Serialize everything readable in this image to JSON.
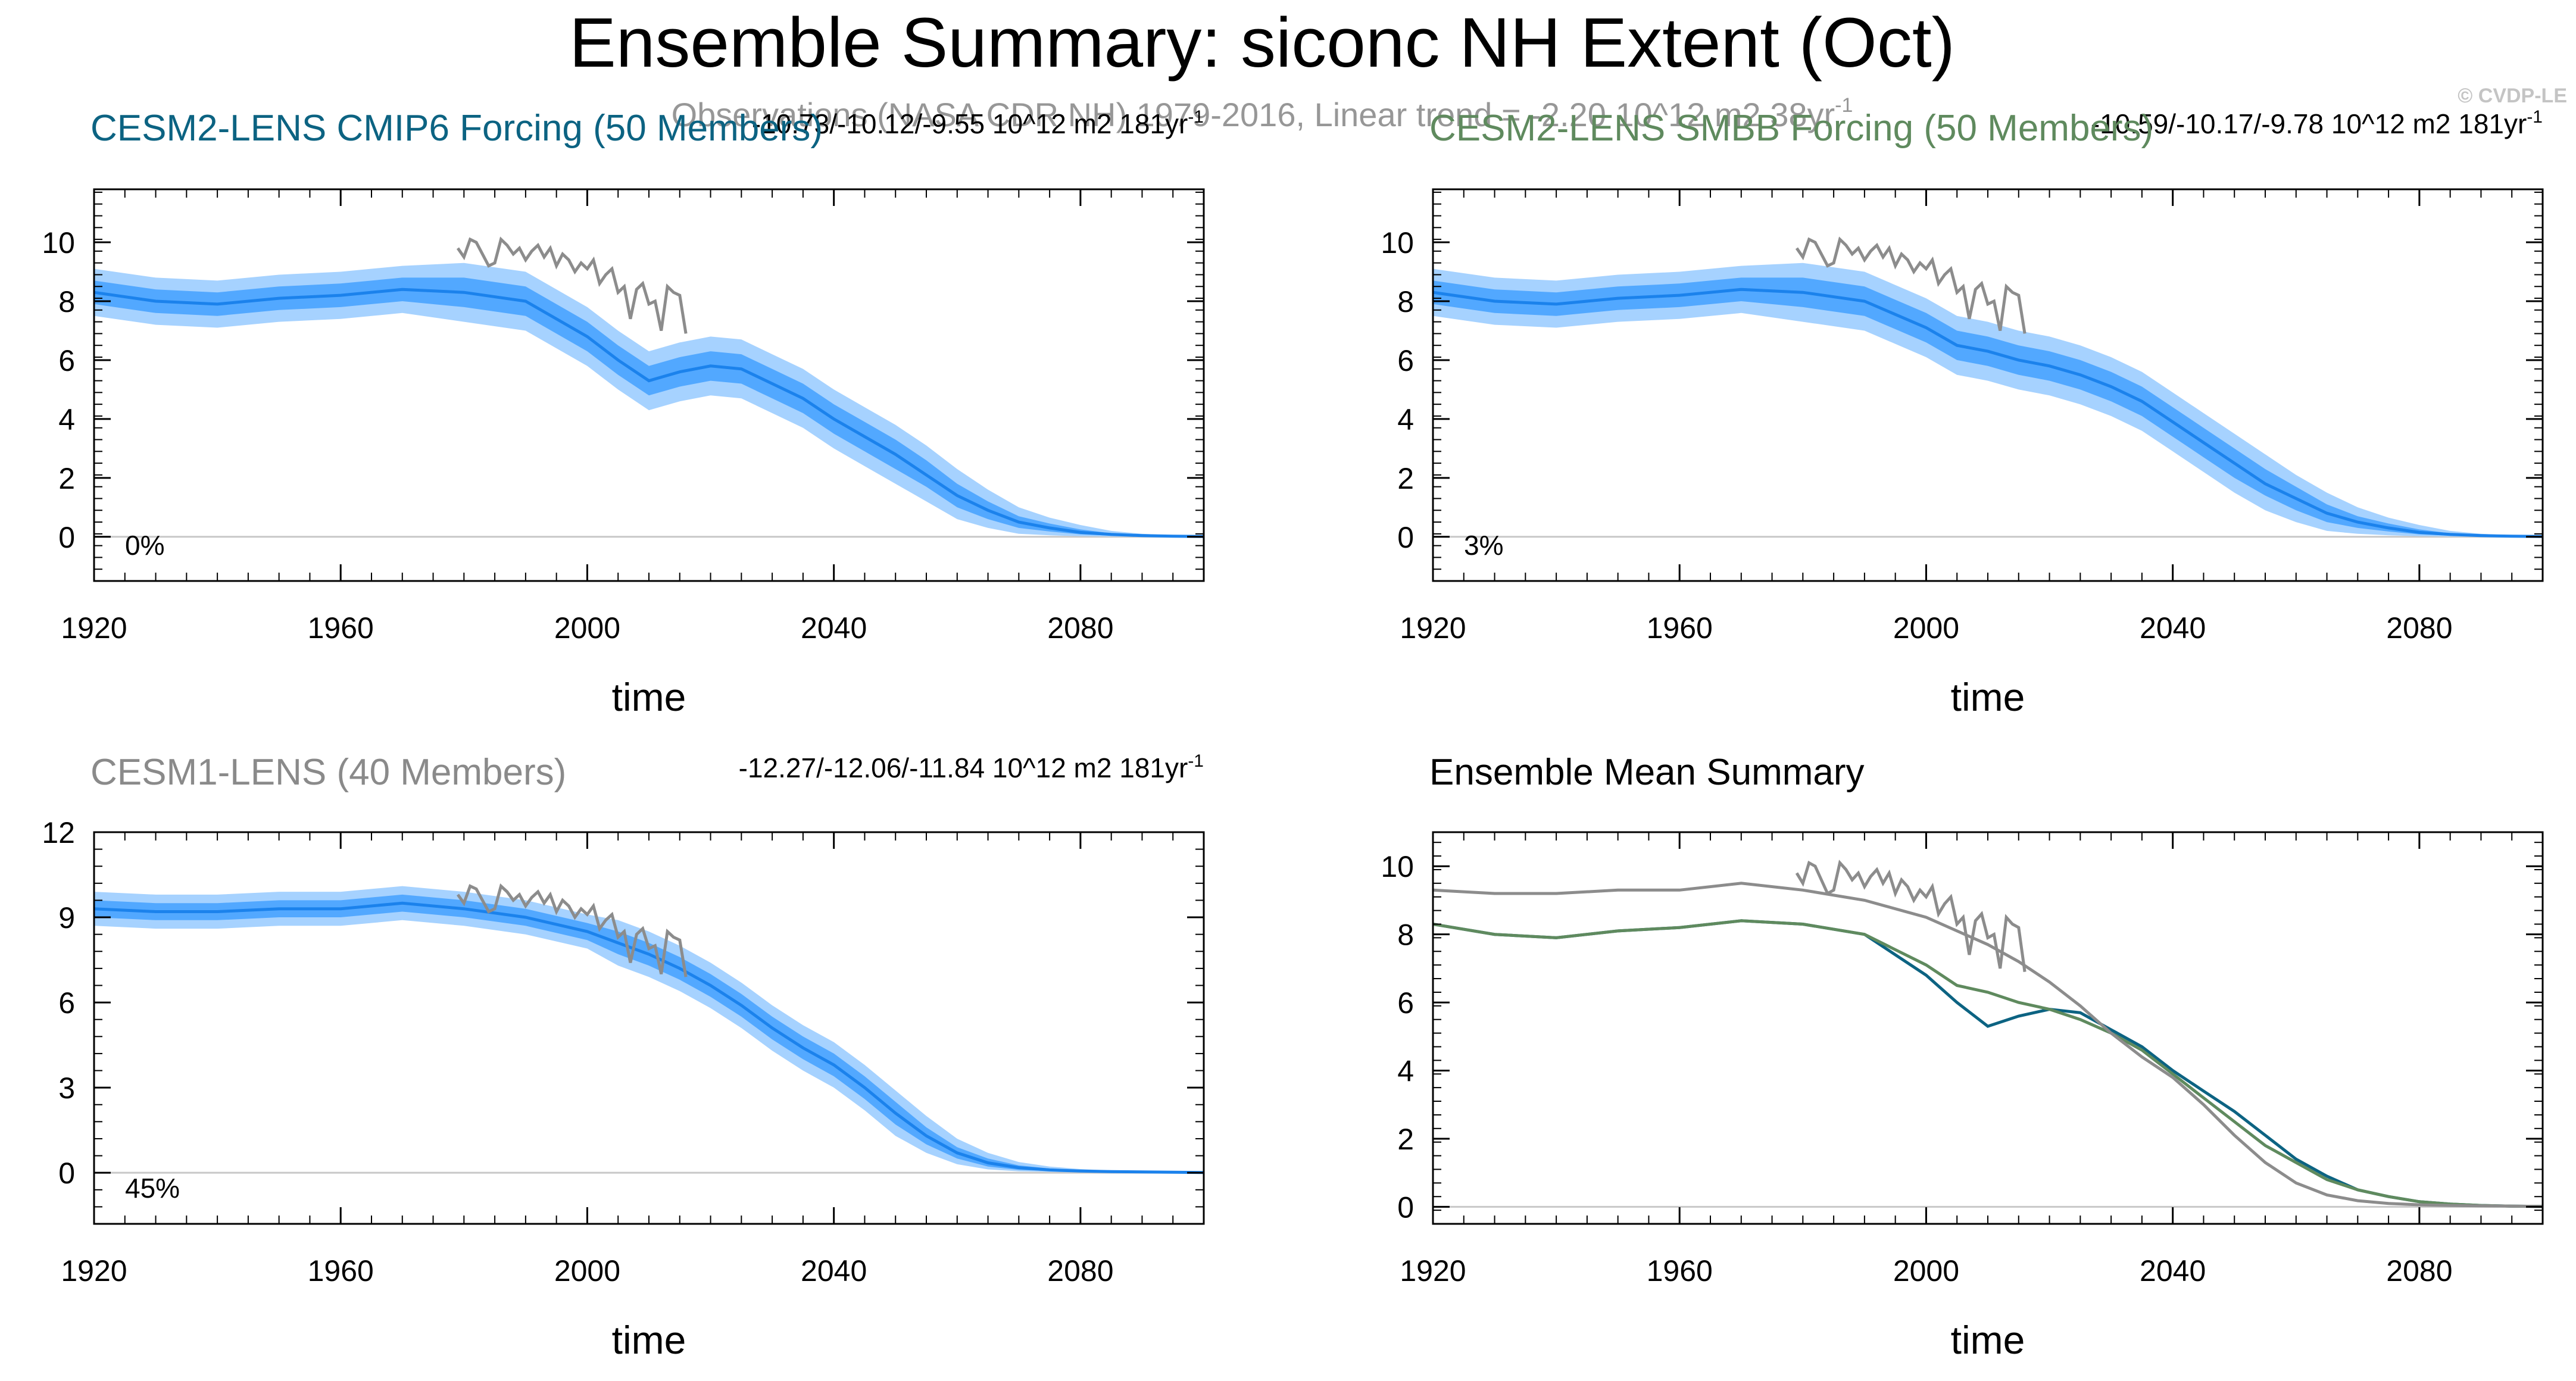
{
  "figure": {
    "title": "Ensemble Summary: siconc NH Extent (Oct)",
    "watermark": "© CVDP-LE",
    "observations_label": "Observations (NASA CDR NH) 1979-2016, Linear trend = -2.20 10^12 m2 38yr",
    "observations_label_superscript": "-1"
  },
  "colors": {
    "band_outer": "#a6d2ff",
    "band_inner": "#52a8ff",
    "ensemble_mean": "#1b82ec",
    "observations": "#8c8c8c",
    "cmip6_title": "#0c6382",
    "smbb_title": "#5f8a5e",
    "cesm1_title": "#8a8a8a",
    "zero_line": "#c8c8c8",
    "text": "#000000"
  },
  "chart_data": [
    {
      "id": "cmip6",
      "type": "area",
      "title": "CESM2-LENS CMIP6 Forcing (50 Members)",
      "trend_label": "-10.73/-10.12/-9.55 10^12 m2 181yr",
      "trend_superscript": "-1",
      "percent_label": "0%",
      "xlabel": "time",
      "ylabel": "",
      "xlim": [
        1920,
        2100
      ],
      "ylim": [
        -1.5,
        11.8
      ],
      "yticks": [
        0,
        2,
        4,
        6,
        8,
        10
      ],
      "xticks": [
        1920,
        1960,
        2000,
        2040,
        2080
      ],
      "x": [
        1920,
        1930,
        1940,
        1950,
        1960,
        1970,
        1980,
        1990,
        2000,
        2005,
        2010,
        2015,
        2020,
        2025,
        2030,
        2035,
        2040,
        2045,
        2050,
        2055,
        2060,
        2065,
        2070,
        2075,
        2080,
        2085,
        2090,
        2095,
        2100
      ],
      "mean": [
        8.3,
        8.0,
        7.9,
        8.1,
        8.2,
        8.4,
        8.3,
        8.0,
        6.8,
        6.0,
        5.3,
        5.6,
        5.8,
        5.7,
        5.2,
        4.7,
        4.0,
        3.4,
        2.8,
        2.1,
        1.4,
        0.9,
        0.5,
        0.3,
        0.15,
        0.08,
        0.04,
        0.02,
        0.01
      ],
      "inner_low": [
        7.9,
        7.6,
        7.5,
        7.7,
        7.8,
        8.0,
        7.8,
        7.5,
        6.3,
        5.5,
        4.8,
        5.1,
        5.3,
        5.2,
        4.7,
        4.2,
        3.5,
        2.9,
        2.3,
        1.7,
        1.0,
        0.6,
        0.3,
        0.18,
        0.08,
        0.04,
        0.02,
        0.01,
        0.0
      ],
      "inner_high": [
        8.7,
        8.4,
        8.3,
        8.5,
        8.6,
        8.8,
        8.8,
        8.5,
        7.3,
        6.5,
        5.8,
        6.1,
        6.3,
        6.2,
        5.7,
        5.2,
        4.5,
        3.9,
        3.3,
        2.6,
        1.8,
        1.2,
        0.7,
        0.45,
        0.25,
        0.12,
        0.06,
        0.03,
        0.02
      ],
      "outer_low": [
        7.5,
        7.2,
        7.1,
        7.3,
        7.4,
        7.6,
        7.3,
        7.0,
        5.8,
        5.0,
        4.3,
        4.6,
        4.8,
        4.7,
        4.2,
        3.7,
        3.0,
        2.4,
        1.8,
        1.2,
        0.6,
        0.3,
        0.1,
        0.05,
        0.02,
        0.01,
        0.0,
        0.0,
        0.0
      ],
      "outer_high": [
        9.1,
        8.8,
        8.7,
        8.9,
        9.0,
        9.2,
        9.3,
        9.0,
        7.8,
        7.0,
        6.3,
        6.6,
        6.8,
        6.7,
        6.2,
        5.7,
        5.0,
        4.4,
        3.8,
        3.1,
        2.3,
        1.6,
        1.0,
        0.65,
        0.4,
        0.2,
        0.1,
        0.05,
        0.03
      ],
      "obs_x": [
        1979,
        1980,
        1981,
        1982,
        1983,
        1984,
        1985,
        1986,
        1987,
        1988,
        1989,
        1990,
        1991,
        1992,
        1993,
        1994,
        1995,
        1996,
        1997,
        1998,
        1999,
        2000,
        2001,
        2002,
        2003,
        2004,
        2005,
        2006,
        2007,
        2008,
        2009,
        2010,
        2011,
        2012,
        2013,
        2014,
        2015,
        2016
      ],
      "obs_y": [
        9.8,
        9.5,
        10.1,
        10.0,
        9.6,
        9.2,
        9.3,
        10.1,
        9.9,
        9.6,
        9.8,
        9.4,
        9.7,
        9.9,
        9.5,
        9.8,
        9.2,
        9.6,
        9.4,
        9.0,
        9.3,
        9.1,
        9.4,
        8.6,
        8.9,
        9.1,
        8.3,
        8.5,
        7.4,
        8.4,
        8.6,
        7.9,
        8.0,
        7.0,
        8.5,
        8.3,
        8.2,
        6.9
      ]
    },
    {
      "id": "smbb",
      "type": "area",
      "title": "CESM2-LENS SMBB Forcing (50 Members)",
      "trend_label": "-10.59/-10.17/-9.78 10^12 m2 181yr",
      "trend_superscript": "-1",
      "percent_label": "3%",
      "xlabel": "time",
      "ylabel": "",
      "xlim": [
        1920,
        2100
      ],
      "ylim": [
        -1.5,
        11.8
      ],
      "yticks": [
        0,
        2,
        4,
        6,
        8,
        10
      ],
      "xticks": [
        1920,
        1960,
        2000,
        2040,
        2080
      ],
      "x": [
        1920,
        1930,
        1940,
        1950,
        1960,
        1970,
        1980,
        1990,
        2000,
        2005,
        2010,
        2015,
        2020,
        2025,
        2030,
        2035,
        2040,
        2045,
        2050,
        2055,
        2060,
        2065,
        2070,
        2075,
        2080,
        2085,
        2090,
        2095,
        2100
      ],
      "mean": [
        8.3,
        8.0,
        7.9,
        8.1,
        8.2,
        8.4,
        8.3,
        8.0,
        7.1,
        6.5,
        6.3,
        6.0,
        5.8,
        5.5,
        5.1,
        4.6,
        3.9,
        3.2,
        2.5,
        1.8,
        1.3,
        0.8,
        0.5,
        0.3,
        0.15,
        0.08,
        0.04,
        0.02,
        0.01
      ],
      "inner_low": [
        7.9,
        7.6,
        7.5,
        7.7,
        7.8,
        8.0,
        7.8,
        7.5,
        6.6,
        6.0,
        5.8,
        5.5,
        5.3,
        5.0,
        4.6,
        4.1,
        3.4,
        2.7,
        2.0,
        1.4,
        0.9,
        0.5,
        0.3,
        0.18,
        0.08,
        0.04,
        0.02,
        0.01,
        0.0
      ],
      "inner_high": [
        8.7,
        8.4,
        8.3,
        8.5,
        8.6,
        8.8,
        8.8,
        8.5,
        7.6,
        7.0,
        6.8,
        6.5,
        6.3,
        6.0,
        5.6,
        5.1,
        4.4,
        3.7,
        3.0,
        2.3,
        1.7,
        1.1,
        0.7,
        0.45,
        0.25,
        0.12,
        0.06,
        0.03,
        0.02
      ],
      "outer_low": [
        7.5,
        7.2,
        7.1,
        7.3,
        7.4,
        7.6,
        7.3,
        7.0,
        6.1,
        5.5,
        5.3,
        5.0,
        4.8,
        4.5,
        4.1,
        3.6,
        2.9,
        2.2,
        1.5,
        0.9,
        0.5,
        0.2,
        0.1,
        0.05,
        0.02,
        0.01,
        0.0,
        0.0,
        0.0
      ],
      "outer_high": [
        9.1,
        8.8,
        8.7,
        8.9,
        9.0,
        9.2,
        9.3,
        9.0,
        8.1,
        7.5,
        7.3,
        7.0,
        6.8,
        6.5,
        6.1,
        5.6,
        4.9,
        4.2,
        3.5,
        2.8,
        2.1,
        1.5,
        1.0,
        0.65,
        0.4,
        0.2,
        0.1,
        0.05,
        0.03
      ],
      "obs_x": [
        1979,
        1980,
        1981,
        1982,
        1983,
        1984,
        1985,
        1986,
        1987,
        1988,
        1989,
        1990,
        1991,
        1992,
        1993,
        1994,
        1995,
        1996,
        1997,
        1998,
        1999,
        2000,
        2001,
        2002,
        2003,
        2004,
        2005,
        2006,
        2007,
        2008,
        2009,
        2010,
        2011,
        2012,
        2013,
        2014,
        2015,
        2016
      ],
      "obs_y": [
        9.8,
        9.5,
        10.1,
        10.0,
        9.6,
        9.2,
        9.3,
        10.1,
        9.9,
        9.6,
        9.8,
        9.4,
        9.7,
        9.9,
        9.5,
        9.8,
        9.2,
        9.6,
        9.4,
        9.0,
        9.3,
        9.1,
        9.4,
        8.6,
        8.9,
        9.1,
        8.3,
        8.5,
        7.4,
        8.4,
        8.6,
        7.9,
        8.0,
        7.0,
        8.5,
        8.3,
        8.2,
        6.9
      ]
    },
    {
      "id": "cesm1",
      "type": "area",
      "title": "CESM1-LENS (40 Members)",
      "trend_label": "-12.27/-12.06/-11.84 10^12 m2 181yr",
      "trend_superscript": "-1",
      "percent_label": "45%",
      "xlabel": "time",
      "ylabel": "",
      "xlim": [
        1920,
        2100
      ],
      "ylim": [
        -1.8,
        12
      ],
      "yticks": [
        0,
        3,
        6,
        9,
        12
      ],
      "xticks": [
        1920,
        1960,
        2000,
        2040,
        2080
      ],
      "x": [
        1920,
        1930,
        1940,
        1950,
        1960,
        1970,
        1980,
        1990,
        2000,
        2005,
        2010,
        2015,
        2020,
        2025,
        2030,
        2035,
        2040,
        2045,
        2050,
        2055,
        2060,
        2065,
        2070,
        2075,
        2080,
        2085,
        2090,
        2095,
        2100
      ],
      "mean": [
        9.3,
        9.2,
        9.2,
        9.3,
        9.3,
        9.5,
        9.3,
        9.0,
        8.5,
        8.1,
        7.7,
        7.2,
        6.6,
        5.9,
        5.1,
        4.4,
        3.8,
        3.0,
        2.1,
        1.3,
        0.7,
        0.35,
        0.18,
        0.1,
        0.06,
        0.04,
        0.03,
        0.02,
        0.01
      ],
      "inner_low": [
        9.0,
        8.9,
        8.9,
        9.0,
        9.0,
        9.2,
        9.0,
        8.7,
        8.2,
        7.7,
        7.3,
        6.8,
        6.2,
        5.5,
        4.7,
        4.0,
        3.4,
        2.6,
        1.7,
        1.0,
        0.5,
        0.22,
        0.1,
        0.06,
        0.03,
        0.02,
        0.01,
        0.01,
        0.0
      ],
      "inner_high": [
        9.6,
        9.5,
        9.5,
        9.6,
        9.6,
        9.8,
        9.6,
        9.3,
        8.8,
        8.5,
        8.1,
        7.6,
        7.0,
        6.3,
        5.5,
        4.8,
        4.2,
        3.4,
        2.5,
        1.6,
        0.9,
        0.5,
        0.26,
        0.15,
        0.09,
        0.06,
        0.04,
        0.03,
        0.02
      ],
      "outer_low": [
        8.7,
        8.6,
        8.6,
        8.7,
        8.7,
        8.9,
        8.7,
        8.4,
        7.9,
        7.3,
        6.9,
        6.4,
        5.8,
        5.1,
        4.3,
        3.6,
        3.0,
        2.2,
        1.3,
        0.7,
        0.3,
        0.12,
        0.05,
        0.03,
        0.01,
        0.01,
        0.0,
        0.0,
        0.0
      ],
      "outer_high": [
        9.9,
        9.8,
        9.8,
        9.9,
        9.9,
        10.1,
        9.9,
        9.6,
        9.1,
        8.9,
        8.5,
        8.0,
        7.4,
        6.7,
        5.9,
        5.2,
        4.6,
        3.8,
        2.9,
        2.0,
        1.2,
        0.7,
        0.38,
        0.22,
        0.13,
        0.08,
        0.06,
        0.04,
        0.03
      ],
      "obs_x": [
        1979,
        1980,
        1981,
        1982,
        1983,
        1984,
        1985,
        1986,
        1987,
        1988,
        1989,
        1990,
        1991,
        1992,
        1993,
        1994,
        1995,
        1996,
        1997,
        1998,
        1999,
        2000,
        2001,
        2002,
        2003,
        2004,
        2005,
        2006,
        2007,
        2008,
        2009,
        2010,
        2011,
        2012,
        2013,
        2014,
        2015,
        2016
      ],
      "obs_y": [
        9.8,
        9.5,
        10.1,
        10.0,
        9.6,
        9.2,
        9.3,
        10.1,
        9.9,
        9.6,
        9.8,
        9.4,
        9.7,
        9.9,
        9.5,
        9.8,
        9.2,
        9.6,
        9.4,
        9.0,
        9.3,
        9.1,
        9.4,
        8.6,
        8.9,
        9.1,
        8.3,
        8.5,
        7.4,
        8.4,
        8.6,
        7.9,
        8.0,
        7.0,
        8.5,
        8.3,
        8.2,
        6.9
      ]
    },
    {
      "id": "mean_summary",
      "type": "line",
      "title": "Ensemble Mean Summary",
      "xlabel": "time",
      "ylabel": "",
      "xlim": [
        1920,
        2100
      ],
      "ylim": [
        -0.5,
        11
      ],
      "yticks": [
        0,
        2,
        4,
        6,
        8,
        10
      ],
      "xticks": [
        1920,
        1960,
        2000,
        2040,
        2080
      ],
      "series": [
        {
          "name": "CESM2-LENS CMIP6 Forcing",
          "color": "#0c6382",
          "x": [
            1920,
            1930,
            1940,
            1950,
            1960,
            1970,
            1980,
            1990,
            2000,
            2005,
            2010,
            2015,
            2020,
            2025,
            2030,
            2035,
            2040,
            2045,
            2050,
            2055,
            2060,
            2065,
            2070,
            2075,
            2080,
            2085,
            2090,
            2095,
            2100
          ],
          "values": [
            8.3,
            8.0,
            7.9,
            8.1,
            8.2,
            8.4,
            8.3,
            8.0,
            6.8,
            6.0,
            5.3,
            5.6,
            5.8,
            5.7,
            5.2,
            4.7,
            4.0,
            3.4,
            2.8,
            2.1,
            1.4,
            0.9,
            0.5,
            0.3,
            0.15,
            0.08,
            0.04,
            0.02,
            0.01
          ]
        },
        {
          "name": "CESM2-LENS SMBB Forcing",
          "color": "#5f8a5e",
          "x": [
            1920,
            1930,
            1940,
            1950,
            1960,
            1970,
            1980,
            1990,
            2000,
            2005,
            2010,
            2015,
            2020,
            2025,
            2030,
            2035,
            2040,
            2045,
            2050,
            2055,
            2060,
            2065,
            2070,
            2075,
            2080,
            2085,
            2090,
            2095,
            2100
          ],
          "values": [
            8.3,
            8.0,
            7.9,
            8.1,
            8.2,
            8.4,
            8.3,
            8.0,
            7.1,
            6.5,
            6.3,
            6.0,
            5.8,
            5.5,
            5.1,
            4.6,
            3.9,
            3.2,
            2.5,
            1.8,
            1.3,
            0.8,
            0.5,
            0.3,
            0.15,
            0.08,
            0.04,
            0.02,
            0.01
          ]
        },
        {
          "name": "CESM1-LENS",
          "color": "#8c8c8c",
          "x": [
            1920,
            1930,
            1940,
            1950,
            1960,
            1970,
            1980,
            1990,
            2000,
            2005,
            2010,
            2015,
            2020,
            2025,
            2030,
            2035,
            2040,
            2045,
            2050,
            2055,
            2060,
            2065,
            2070,
            2075,
            2080,
            2085,
            2090,
            2095,
            2100
          ],
          "values": [
            9.3,
            9.2,
            9.2,
            9.3,
            9.3,
            9.5,
            9.3,
            9.0,
            8.5,
            8.1,
            7.7,
            7.2,
            6.6,
            5.9,
            5.1,
            4.4,
            3.8,
            3.0,
            2.1,
            1.3,
            0.7,
            0.35,
            0.18,
            0.1,
            0.06,
            0.04,
            0.03,
            0.02,
            0.01
          ]
        },
        {
          "name": "Observations (NASA CDR NH)",
          "color": "#8c8c8c",
          "x": [
            1979,
            1980,
            1981,
            1982,
            1983,
            1984,
            1985,
            1986,
            1987,
            1988,
            1989,
            1990,
            1991,
            1992,
            1993,
            1994,
            1995,
            1996,
            1997,
            1998,
            1999,
            2000,
            2001,
            2002,
            2003,
            2004,
            2005,
            2006,
            2007,
            2008,
            2009,
            2010,
            2011,
            2012,
            2013,
            2014,
            2015,
            2016
          ],
          "values": [
            9.8,
            9.5,
            10.1,
            10.0,
            9.6,
            9.2,
            9.3,
            10.1,
            9.9,
            9.6,
            9.8,
            9.4,
            9.7,
            9.9,
            9.5,
            9.8,
            9.2,
            9.6,
            9.4,
            9.0,
            9.3,
            9.1,
            9.4,
            8.6,
            8.9,
            9.1,
            8.3,
            8.5,
            7.4,
            8.4,
            8.6,
            7.9,
            8.0,
            7.0,
            8.5,
            8.3,
            8.2,
            6.9
          ]
        }
      ]
    }
  ]
}
